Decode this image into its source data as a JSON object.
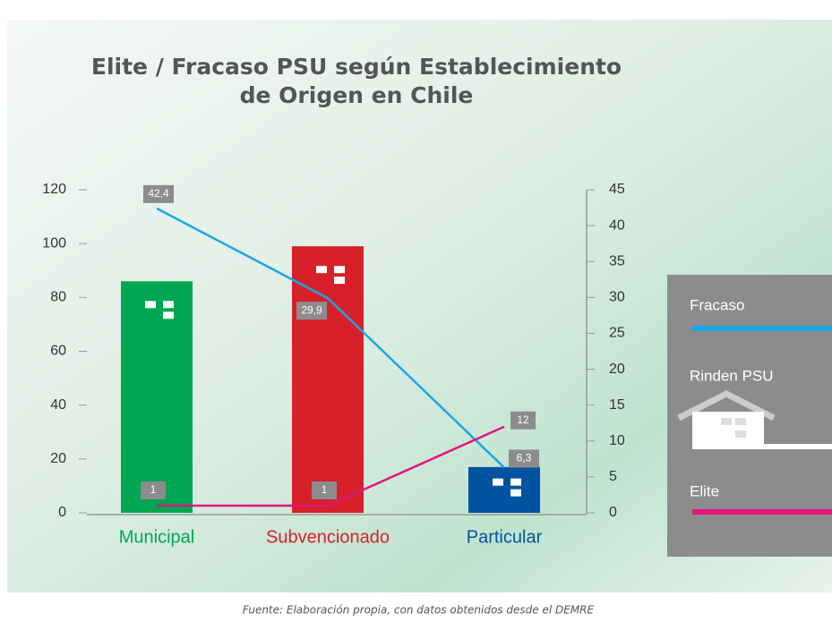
{
  "chart_data": {
    "type": "bar",
    "title": [
      "Elite / Fracaso PSU según Establecimiento",
      "de Origen en Chile"
    ],
    "categories": [
      "Municipal",
      "Subvencionado",
      "Particular"
    ],
    "series": [
      {
        "name": "Rinden PSU",
        "type": "bar",
        "colors": [
          "#00a651",
          "#d7202a",
          "#00539f"
        ],
        "values": [
          86,
          99,
          17
        ]
      },
      {
        "name": "Fracaso",
        "type": "line",
        "axis": "y2",
        "color": "#1ba6e6",
        "values": [
          42.4,
          29.9,
          6.3
        ],
        "value_labels": [
          "42,4",
          "29,9",
          "6,3"
        ]
      },
      {
        "name": "Elite",
        "type": "line",
        "axis": "y2",
        "color": "#e2157c",
        "values": [
          1,
          1,
          12
        ]
      }
    ],
    "ylim": [
      0,
      120
    ],
    "yticks": [
      0,
      20,
      40,
      60,
      80,
      100,
      120
    ],
    "y2lim": [
      0,
      45
    ],
    "y2ticks": [
      0,
      5,
      10,
      15,
      20,
      25,
      30,
      35,
      40,
      45
    ],
    "source": "Fuente: Elaboración propia, con datos obtenidos desde el DEMRE"
  }
}
